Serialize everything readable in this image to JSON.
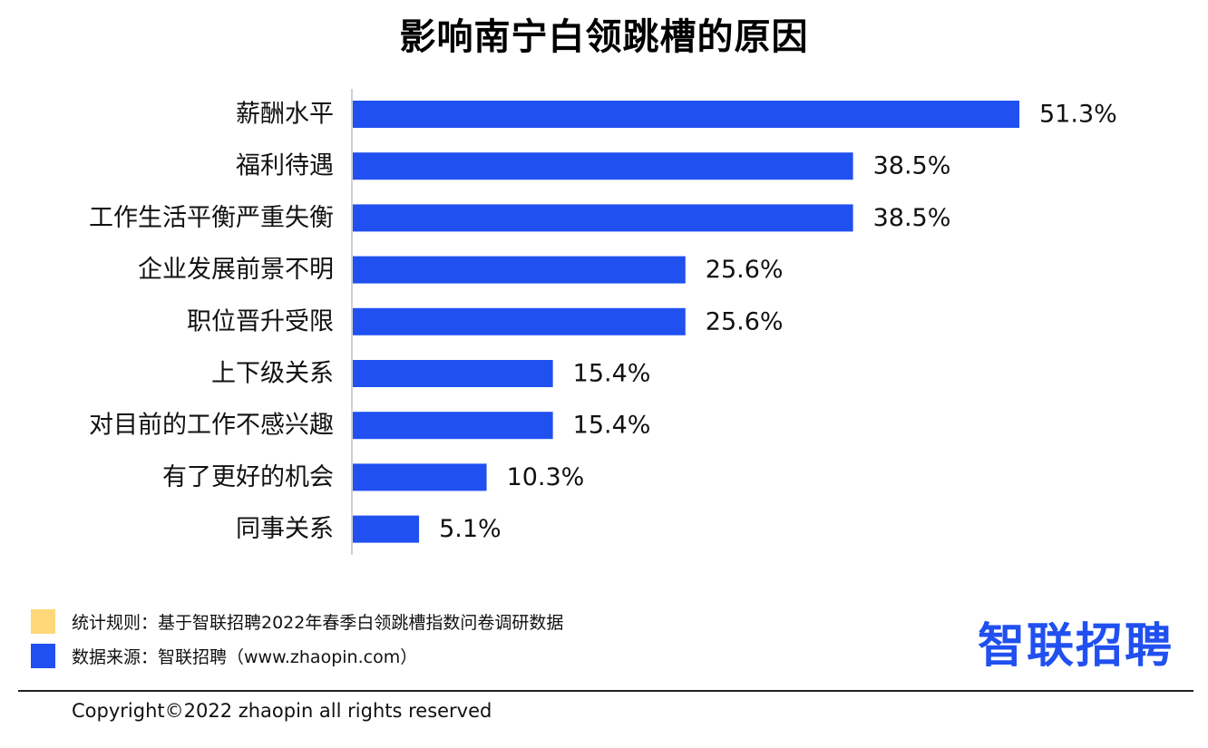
{
  "chart_data": {
    "type": "bar",
    "orientation": "horizontal",
    "title": "影响南宁白领跳槽的原因",
    "categories": [
      "薪酬水平",
      "福利待遇",
      "工作生活平衡严重失衡",
      "企业发展前景不明",
      "职位晋升受限",
      "上下级关系",
      "对目前的工作不感兴趣",
      "有了更好的机会",
      "同事关系"
    ],
    "values": [
      51.3,
      38.5,
      38.5,
      25.6,
      25.6,
      15.4,
      15.4,
      10.3,
      5.1
    ],
    "value_labels": [
      "51.3%",
      "38.5%",
      "38.5%",
      "25.6%",
      "25.6%",
      "15.4%",
      "15.4%",
      "10.3%",
      "5.1%"
    ],
    "unit": "%",
    "xlim": [
      0,
      51.3
    ],
    "grid": false,
    "bar_color": "#2150F0"
  },
  "legend": [
    {
      "text": "统计规则：基于智联招聘2022年春季白领跳槽指数问卷调研数据",
      "color": "#FDD77A"
    },
    {
      "text": "数据来源：智联招聘（www.zhaopin.com）",
      "color": "#2150F0"
    }
  ],
  "logo": {
    "text": "智联招聘",
    "color": "#2150F0",
    "dot_color": "#FDC830"
  },
  "copyright": "Copyright©2022 zhaopin all rights reserved"
}
